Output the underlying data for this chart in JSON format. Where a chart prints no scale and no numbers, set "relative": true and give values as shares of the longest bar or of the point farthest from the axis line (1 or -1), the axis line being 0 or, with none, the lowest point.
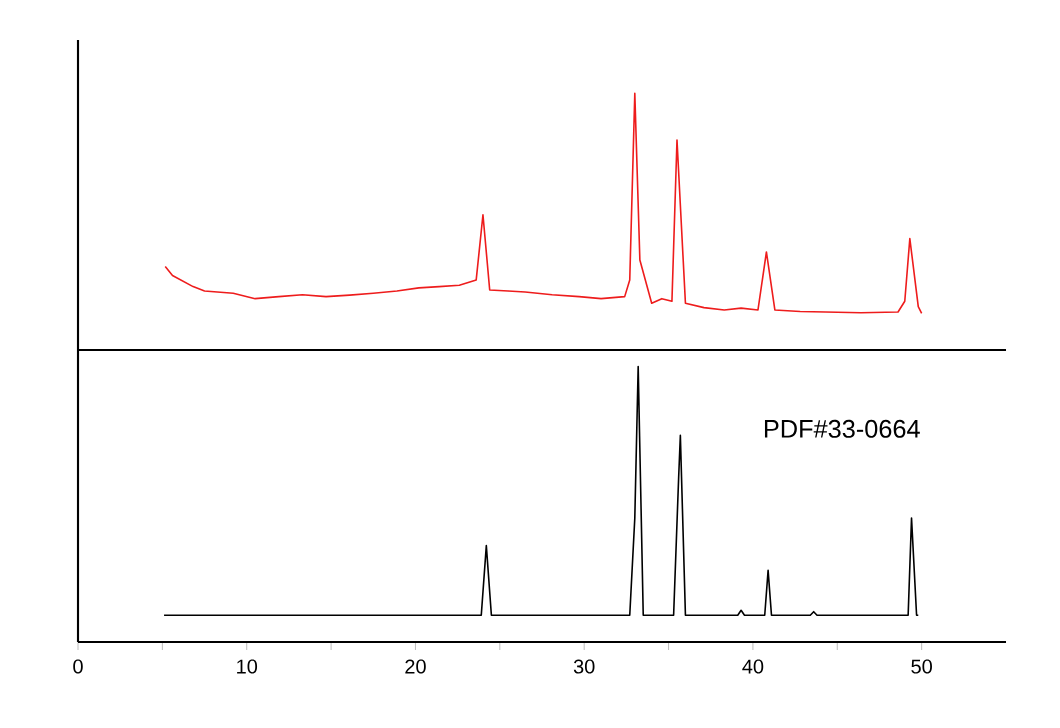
{
  "chart_data": [
    {
      "type": "line",
      "relative": true,
      "xlim": [
        0,
        55
      ],
      "tick_labels": false,
      "series": [
        {
          "color": "#ee1c1c",
          "x": [
            5.17,
            5.6,
            6.82,
            7.5,
            9.2,
            10.5,
            11.9,
            13.3,
            14.7,
            16.1,
            17.5,
            18.9,
            20.2,
            21.4,
            22.6,
            23.6,
            24.0,
            24.4,
            25.5,
            26.5,
            28.1,
            29.7,
            31.0,
            32.4,
            32.7,
            33.0,
            33.3,
            34.0,
            34.6,
            35.2,
            35.5,
            36.0,
            37.1,
            38.3,
            39.3,
            40.3,
            40.8,
            41.3,
            42.8,
            44.3,
            46.4,
            48.6,
            49.0,
            49.3,
            49.8,
            50.0
          ],
          "values": [
            0.325,
            0.29,
            0.247,
            0.23,
            0.221,
            0.2,
            0.208,
            0.215,
            0.208,
            0.214,
            0.221,
            0.23,
            0.242,
            0.247,
            0.252,
            0.273,
            0.527,
            0.234,
            0.23,
            0.226,
            0.215,
            0.208,
            0.2,
            0.208,
            0.273,
            1.0,
            0.351,
            0.182,
            0.2,
            0.19,
            0.818,
            0.182,
            0.165,
            0.156,
            0.163,
            0.156,
            0.382,
            0.156,
            0.15,
            0.148,
            0.145,
            0.148,
            0.19,
            0.434,
            0.169,
            0.143
          ]
        }
      ]
    },
    {
      "type": "line",
      "relative": true,
      "xlim": [
        0,
        55
      ],
      "tick_labels": "x",
      "annotations": [
        "PDF#33-0664"
      ],
      "xticks": [
        0,
        {
          "value": 5,
          "label": null
        },
        10,
        {
          "value": 15,
          "label": null
        },
        20,
        {
          "value": 25,
          "label": null
        },
        30,
        {
          "value": 35,
          "label": null
        },
        40,
        {
          "value": 45,
          "label": null
        },
        50
      ],
      "series": [
        {
          "color": "#000000",
          "x": [
            5.1,
            23.9,
            24.2,
            24.5,
            32.7,
            33.0,
            33.2,
            33.5,
            35.3,
            35.6,
            35.7,
            36.0,
            39.1,
            39.3,
            39.5,
            40.7,
            40.9,
            41.1,
            43.4,
            43.6,
            43.8,
            49.2,
            49.4,
            49.7,
            49.8
          ],
          "values": [
            0.097,
            0.097,
            0.35,
            0.097,
            0.097,
            0.45,
            1.0,
            0.097,
            0.097,
            0.6,
            0.75,
            0.097,
            0.097,
            0.115,
            0.097,
            0.097,
            0.26,
            0.097,
            0.097,
            0.11,
            0.097,
            0.097,
            0.45,
            0.097,
            0.097
          ]
        }
      ]
    }
  ]
}
